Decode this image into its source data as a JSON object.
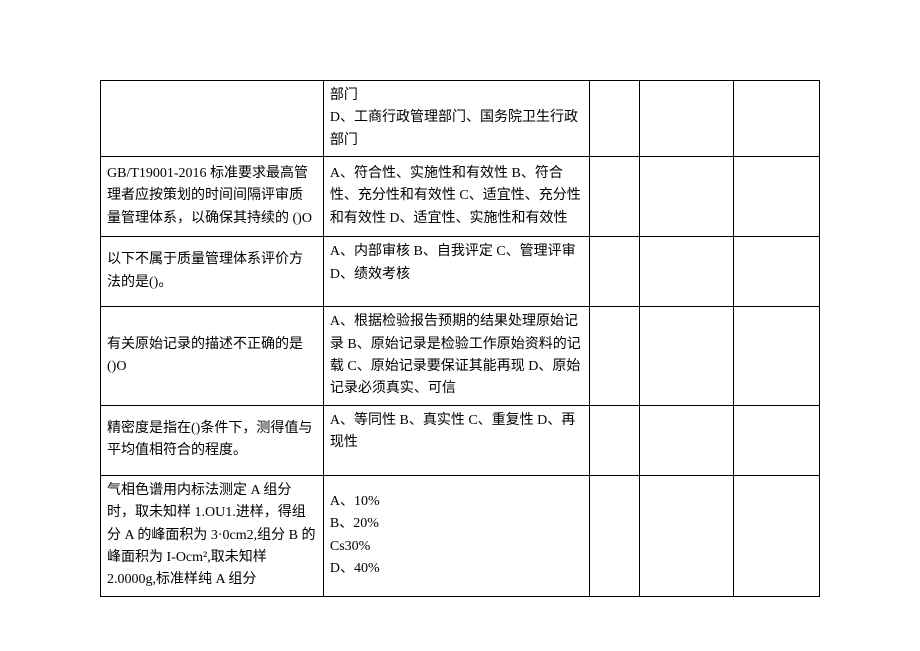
{
  "table": {
    "columns": {
      "col1_width": "31%",
      "col2_width": "37%",
      "col3_width": "7%",
      "col4_width": "13%",
      "col5_width": "12%"
    },
    "border_color": "#000000",
    "background_color": "#ffffff",
    "font_family": "SimSun",
    "font_size": 14,
    "text_color": "#000000",
    "rows": [
      {
        "question": "",
        "options": "部门\nD、工商行政管理部门、国务院卫生行政部门",
        "c3": "",
        "c4": "",
        "c5": ""
      },
      {
        "question": "GB/T19001-2016 标准要求最高管理者应按策划的时间间隔评审质量管理体系，以确保其持续的       ()O",
        "options": "A、符合性、实施性和有效性 B、符合性、充分性和有效性 C、适宜性、充分性和有效性 D、适宜性、实施性和有效性",
        "c3": "",
        "c4": "",
        "c5": ""
      },
      {
        "question": "以下不属于质量管理体系评价方法的是()。",
        "options": "A、内部审核 B、自我评定 C、管理评审 D、绩效考核",
        "c3": "",
        "c4": "",
        "c5": ""
      },
      {
        "question": "有关原始记录的描述不正确的是()O",
        "options": "A、根据检验报告预期的结果处理原始记录 B、原始记录是检验工作原始资料的记载 C、原始记录要保证其能再现           D、原始记录必须真实、可信",
        "c3": "",
        "c4": "",
        "c5": ""
      },
      {
        "question": "精密度是指在()条件下，测得值与平均值相符合的程度。",
        "options": "A、等同性 B、真实性 C、重复性 D、再现性",
        "c3": "",
        "c4": "",
        "c5": ""
      },
      {
        "question": "气相色谱用内标法测定 A 组分时，取未知样 1.OU1.进样，得组分 A 的峰面积为 3·0cm2,组分 B 的峰面积为 I-Ocm²,取未知样 2.0000g,标准样纯 A 组分",
        "options": "A、10%\nB、20%\nCs30%\nD、40%",
        "c3": "",
        "c4": "",
        "c5": ""
      }
    ]
  }
}
